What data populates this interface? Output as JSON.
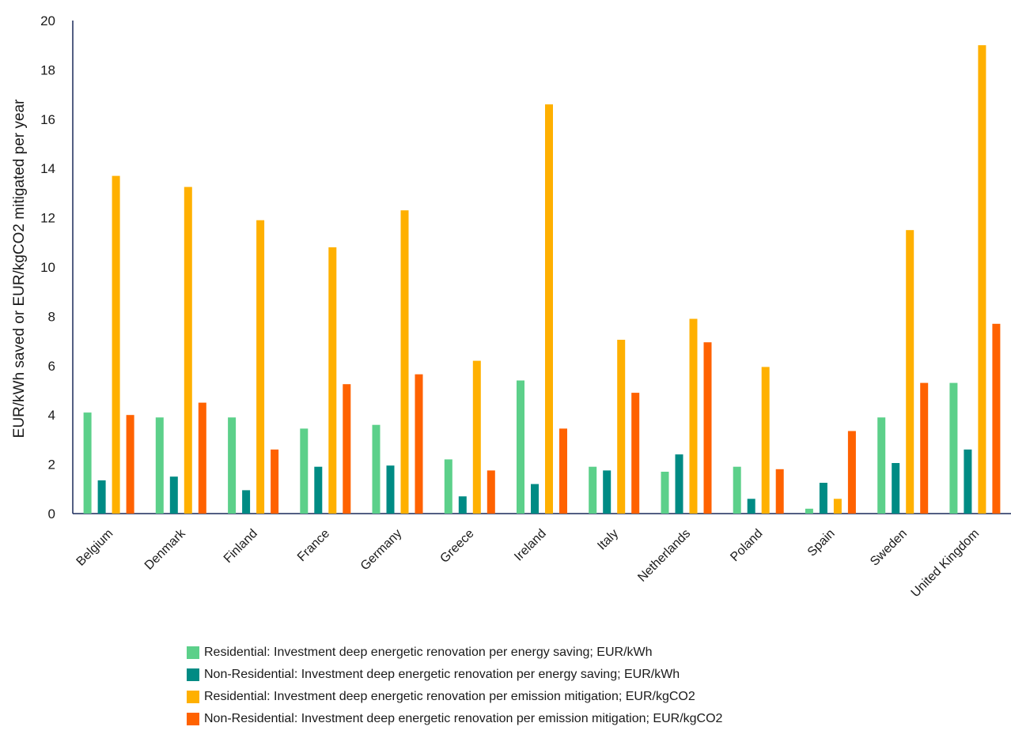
{
  "chart_data": {
    "type": "bar",
    "ylabel": "EUR/kWh saved or EUR/kgCO2 mitigated per year",
    "xlabel": "",
    "ylim": [
      0,
      20
    ],
    "yticks": [
      0,
      2,
      4,
      6,
      8,
      10,
      12,
      14,
      16,
      18,
      20
    ],
    "grid": false,
    "legend_position": "bottom",
    "categories": [
      "Belgium",
      "Denmark",
      "Finland",
      "France",
      "Germany",
      "Greece",
      "Ireland",
      "Italy",
      "Netherlands",
      "Poland",
      "Spain",
      "Sweden",
      "United Kingdom"
    ],
    "series": [
      {
        "name": "Residential: Investment deep energetic renovation per energy saving; EUR/kWh",
        "color": "#5cd08a",
        "values": [
          4.1,
          3.9,
          3.9,
          3.45,
          3.6,
          2.2,
          5.4,
          1.9,
          1.7,
          1.9,
          0.2,
          3.9,
          5.3
        ]
      },
      {
        "name": "Non-Residential: Investment deep energetic renovation per energy saving; EUR/kWh",
        "color": "#008b84",
        "values": [
          1.35,
          1.5,
          0.95,
          1.9,
          1.95,
          0.7,
          1.2,
          1.75,
          2.4,
          0.6,
          1.25,
          2.05,
          2.6
        ]
      },
      {
        "name": "Residential: Investment deep energetic renovation per emission mitigation; EUR/kgCO2",
        "color": "#ffb000",
        "values": [
          13.7,
          13.25,
          11.9,
          10.8,
          12.3,
          6.2,
          16.6,
          7.05,
          7.9,
          5.95,
          0.6,
          11.5,
          19.0
        ]
      },
      {
        "name": "Non-Residential: Investment deep energetic renovation per emission mitigation; EUR/kgCO2",
        "color": "#ff6200",
        "values": [
          4.0,
          4.5,
          2.6,
          5.25,
          5.65,
          1.75,
          3.45,
          4.9,
          6.95,
          1.8,
          3.35,
          5.3,
          7.7
        ]
      }
    ]
  }
}
